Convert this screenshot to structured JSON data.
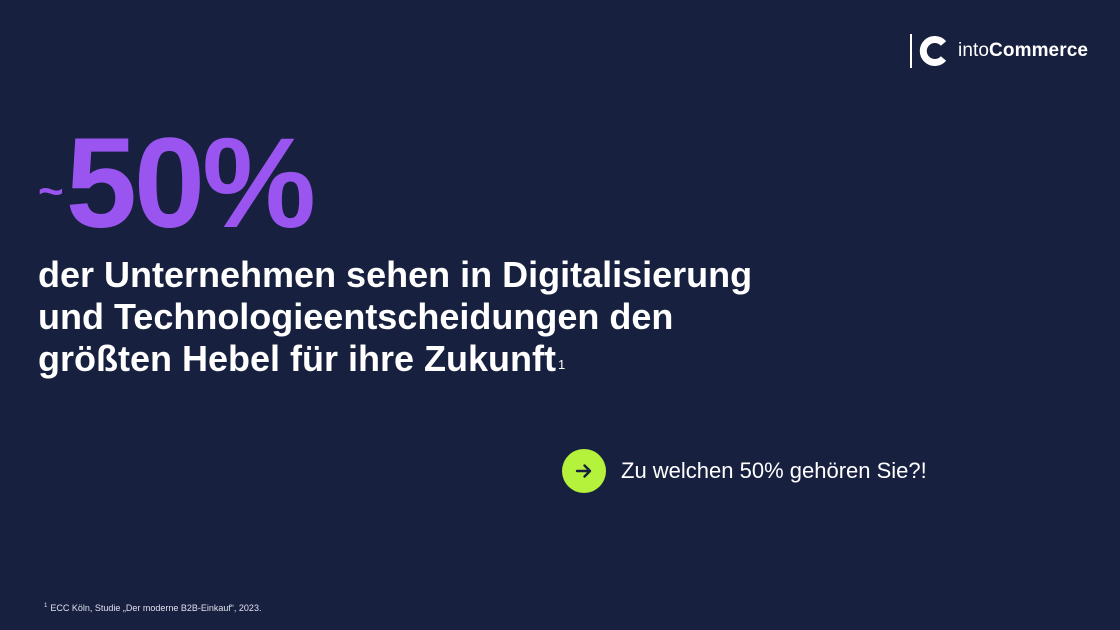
{
  "logo": {
    "text_light": "into",
    "text_bold": "Commerce"
  },
  "stat": {
    "prefix": "~",
    "value": "50%"
  },
  "headline": {
    "line1": "der Unternehmen sehen in Digitalisierung",
    "line2": "und Technologieentscheidungen den",
    "line3": "größten Hebel für ihre Zukunft",
    "footnote_marker": "1"
  },
  "cta": {
    "label": "Zu welchen 50% gehören Sie?!",
    "icon": "arrow-right-icon"
  },
  "footnote": {
    "marker": "1",
    "text": "ECC Köln, Studie „Der moderne B2B-Einkauf“, 2023."
  },
  "colors": {
    "background": "#18203f",
    "accent_purple": "#9a55f0",
    "accent_green": "#b5f23c",
    "text": "#ffffff"
  }
}
